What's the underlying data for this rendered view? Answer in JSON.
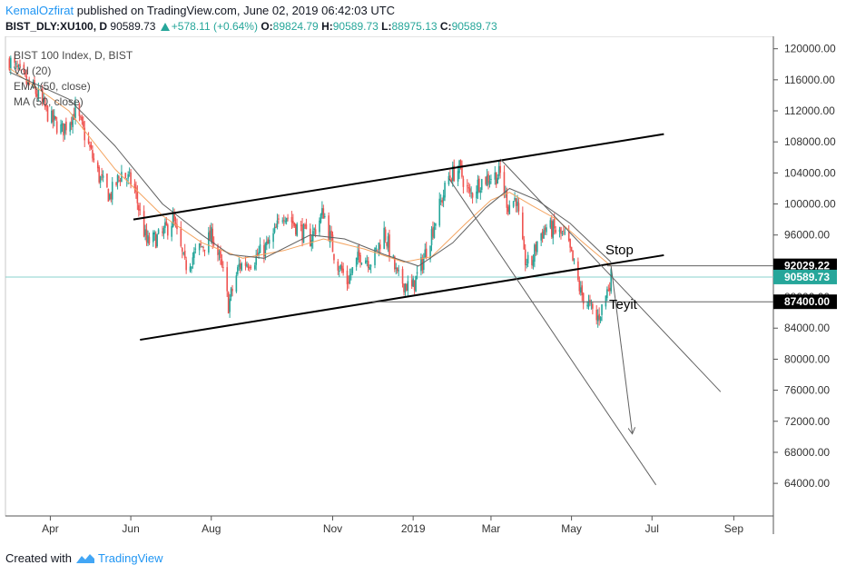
{
  "header": {
    "author": "KemalOzfirat",
    "published_text": "published on TradingView.com, June 02, 2019 06:42:03 UTC",
    "symbol": "BIST_DLY:XU100, D",
    "last_price": "90589.73",
    "change": "+578.11 (+0.64%)",
    "o_label": "O:",
    "o_value": "89824.79",
    "h_label": "H:",
    "h_value": "90589.73",
    "l_label": "L:",
    "l_value": "88975.13",
    "c_label": "C:",
    "c_value": "90589.73"
  },
  "legend": {
    "title": "BIST 100 Index, D, BIST",
    "vol": "Vol (20)",
    "ema": "EMA (50, close)",
    "ma": "MA (50, close)"
  },
  "footer": {
    "created_with": "Created with",
    "brand": "TradingView"
  },
  "colors": {
    "up": "#26a69a",
    "down": "#ef5350",
    "ema": "#f4a460",
    "ma": "#616161",
    "trendline": "#000000",
    "projection": "#616161",
    "current_line": "#8ad0cc"
  },
  "chart_data": {
    "type": "candlestick",
    "title": "BIST 100 Index, D, BIST",
    "x_ticks": [
      "Apr",
      "Jun",
      "Aug",
      "Nov",
      "2019",
      "Mar",
      "May",
      "Jul",
      "Sep"
    ],
    "y_ticks": [
      120000,
      116000,
      112000,
      108000,
      104000,
      100000,
      96000,
      92000,
      88000,
      84000,
      80000,
      76000,
      72000,
      68000,
      64000
    ],
    "y_tick_labels": [
      "120000.00",
      "116000.00",
      "112000.00",
      "108000.00",
      "104000.00",
      "100000.00",
      "96000.00",
      "92000.00",
      "88000.00",
      "84000.00",
      "80000.00",
      "76000.00",
      "72000.00",
      "68000.00",
      "64000.00"
    ],
    "ylim": [
      59800,
      121600
    ],
    "xlim": [
      "2018-02-26",
      "2019-10-01"
    ],
    "price_path": [
      [
        "2018-03-01",
        118500
      ],
      [
        "2018-03-12",
        116000
      ],
      [
        "2018-03-22",
        114200
      ],
      [
        "2018-04-01",
        111000
      ],
      [
        "2018-04-10",
        109500
      ],
      [
        "2018-04-20",
        112000
      ],
      [
        "2018-04-28",
        108500
      ],
      [
        "2018-05-08",
        103500
      ],
      [
        "2018-05-16",
        101000
      ],
      [
        "2018-05-25",
        104000
      ],
      [
        "2018-06-03",
        102500
      ],
      [
        "2018-06-13",
        95000
      ],
      [
        "2018-06-24",
        95800
      ],
      [
        "2018-07-03",
        98000
      ],
      [
        "2018-07-12",
        92000
      ],
      [
        "2018-07-22",
        94000
      ],
      [
        "2018-08-02",
        96000
      ],
      [
        "2018-08-10",
        91000
      ],
      [
        "2018-08-14",
        87000
      ],
      [
        "2018-08-22",
        92000
      ],
      [
        "2018-09-03",
        93000
      ],
      [
        "2018-09-15",
        95000
      ],
      [
        "2018-09-25",
        99000
      ],
      [
        "2018-10-05",
        97000
      ],
      [
        "2018-10-15",
        95500
      ],
      [
        "2018-10-25",
        99000
      ],
      [
        "2018-11-03",
        93000
      ],
      [
        "2018-11-12",
        90000
      ],
      [
        "2018-11-22",
        93500
      ],
      [
        "2018-12-01",
        92500
      ],
      [
        "2018-12-10",
        96500
      ],
      [
        "2018-12-20",
        90500
      ],
      [
        "2018-12-31",
        89000
      ],
      [
        "2019-01-08",
        92500
      ],
      [
        "2019-01-18",
        98000
      ],
      [
        "2019-01-28",
        103500
      ],
      [
        "2019-02-05",
        104500
      ],
      [
        "2019-02-13",
        101000
      ],
      [
        "2019-02-20",
        102800
      ],
      [
        "2019-02-28",
        103500
      ],
      [
        "2019-03-08",
        103800
      ],
      [
        "2019-03-14",
        99800
      ],
      [
        "2019-03-20",
        100800
      ],
      [
        "2019-03-26",
        93000
      ],
      [
        "2019-03-31",
        91800
      ],
      [
        "2019-04-06",
        95800
      ],
      [
        "2019-04-12",
        97000
      ],
      [
        "2019-04-19",
        96500
      ],
      [
        "2019-04-27",
        95500
      ],
      [
        "2019-05-03",
        92000
      ],
      [
        "2019-05-08",
        88500
      ],
      [
        "2019-05-14",
        87000
      ],
      [
        "2019-05-20",
        85000
      ],
      [
        "2019-05-25",
        87000
      ],
      [
        "2019-05-31",
        90589
      ]
    ],
    "ema_50": [
      [
        "2018-03-01",
        117500
      ],
      [
        "2018-04-15",
        112000
      ],
      [
        "2018-05-20",
        104500
      ],
      [
        "2018-06-25",
        98500
      ],
      [
        "2018-07-25",
        95000
      ],
      [
        "2018-08-25",
        93000
      ],
      [
        "2018-09-25",
        94000
      ],
      [
        "2018-10-25",
        95500
      ],
      [
        "2018-11-25",
        94200
      ],
      [
        "2018-12-25",
        92500
      ],
      [
        "2019-01-15",
        93200
      ],
      [
        "2019-02-10",
        97500
      ],
      [
        "2019-03-01",
        100500
      ],
      [
        "2019-03-15",
        101500
      ],
      [
        "2019-04-01",
        99800
      ],
      [
        "2019-04-20",
        98000
      ],
      [
        "2019-05-10",
        95000
      ],
      [
        "2019-05-31",
        92000
      ]
    ],
    "ma_50": [
      [
        "2018-03-01",
        117000
      ],
      [
        "2018-04-15",
        113500
      ],
      [
        "2018-05-20",
        107500
      ],
      [
        "2018-06-25",
        100000
      ],
      [
        "2018-07-25",
        96000
      ],
      [
        "2018-08-15",
        93500
      ],
      [
        "2018-09-10",
        93000
      ],
      [
        "2018-10-15",
        96000
      ],
      [
        "2018-11-10",
        95500
      ],
      [
        "2018-12-10",
        93500
      ],
      [
        "2019-01-05",
        92000
      ],
      [
        "2019-01-31",
        95000
      ],
      [
        "2019-02-25",
        99500
      ],
      [
        "2019-03-15",
        102000
      ],
      [
        "2019-04-05",
        100500
      ],
      [
        "2019-04-30",
        97500
      ],
      [
        "2019-05-31",
        92500
      ]
    ],
    "trendlines": [
      {
        "name": "channel-upper",
        "from": [
          "2018-06-03",
          98000
        ],
        "to": [
          "2019-07-10",
          109000
        ],
        "style": "solid-black"
      },
      {
        "name": "channel-lower",
        "from": [
          "2018-06-08",
          82500
        ],
        "to": [
          "2019-07-10",
          93400
        ],
        "style": "solid-black"
      },
      {
        "name": "projection-line-a",
        "from": [
          "2019-01-28",
          103300
        ],
        "to": [
          "2019-07-04",
          63800
        ],
        "style": "thin-gray"
      },
      {
        "name": "projection-line-b",
        "from": [
          "2019-03-08",
          105800
        ],
        "to": [
          "2019-08-22",
          75800
        ],
        "style": "thin-gray"
      },
      {
        "name": "target-arrow",
        "from": [
          "2019-05-31",
          92000
        ],
        "to": [
          "2019-06-16",
          70500
        ],
        "style": "thin-gray-arrow"
      }
    ],
    "levels": [
      {
        "name": "stop",
        "value": 92029.22,
        "label": "92029.22",
        "text": "Stop",
        "from": "2019-05-28"
      },
      {
        "name": "current",
        "value": 90589.73,
        "label": "90589.73",
        "text": "",
        "from": "2018-02-26"
      },
      {
        "name": "teyit",
        "value": 87400.0,
        "label": "87400.00",
        "text": "Teyit",
        "from": "2018-12-01"
      }
    ]
  }
}
